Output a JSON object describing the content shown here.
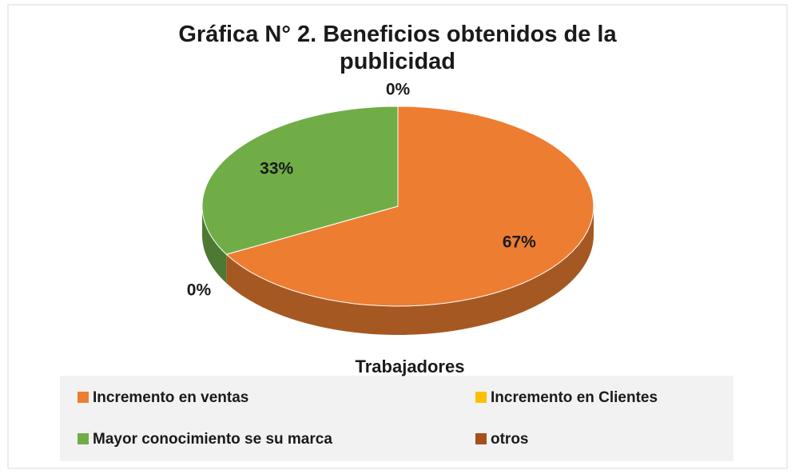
{
  "chart_data": {
    "type": "pie3d",
    "title": "Gráfica N° 2.  Beneficios obtenidos de la publicidad",
    "series_name": "Trabajadores",
    "categories": [
      "Incremento en ventas",
      "Incremento en Clientes",
      "Mayor conocimiento se su marca",
      "otros"
    ],
    "values": [
      67,
      0,
      33,
      0
    ],
    "value_labels": [
      "67%",
      "0%",
      "33%",
      "0%"
    ],
    "colors": [
      "#ED7D31",
      "#FFC000",
      "#70AD47",
      "#A5501C"
    ],
    "legend": "bottom"
  }
}
